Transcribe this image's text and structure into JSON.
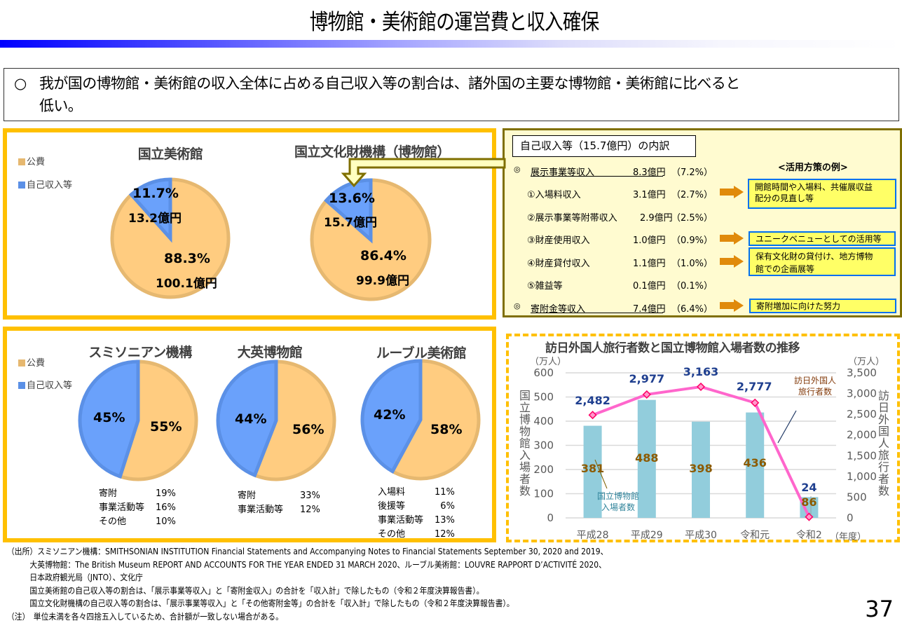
{
  "header": {
    "title": "博物館・美術館の運営費と収入確保"
  },
  "summary": {
    "bullet": "○",
    "line1": "我が国の博物館・美術館の収入全体に占める自己収入等の割合は、諸外国の主要な博物館・美術館に比べると",
    "line2": "低い。"
  },
  "legend": {
    "public": "公費",
    "self": "自己収入等"
  },
  "colors": {
    "public_fill": "#ffcc80",
    "public_stroke": "#e6b870",
    "self_fill": "#6aa1fb",
    "self_stroke": "#5b90e6",
    "yellow_border": "#ffc000",
    "bar": "#92cddc",
    "line": "#ff66cc",
    "marker": "#ff0066",
    "blue_label": "#1f3f8f",
    "brown_label": "#8c5a00"
  },
  "domestic": [
    {
      "name": "国立美術館",
      "self_pct": 11.7,
      "public_pct": 88.3,
      "self_pct_label": "11.7%",
      "self_amount_label": "13.2億円",
      "public_pct_label": "88.3%",
      "public_amount_label": "100.1億円"
    },
    {
      "name": "国立文化財機構（博物館）",
      "self_pct": 13.6,
      "public_pct": 86.4,
      "self_pct_label": "13.6%",
      "self_amount_label": "15.7億円",
      "public_pct_label": "86.4%",
      "public_amount_label": "99.9億円"
    }
  ],
  "breakdown": {
    "header": "自己収入等（15.7億円）の内訳",
    "tips_title": "<活用方策の例>",
    "rows": [
      {
        "mark": "◎",
        "label": "展示事業等収入",
        "amount": "8.3億円",
        "pct": "（7.2%）",
        "underline": true
      },
      {
        "mark": "",
        "label": "①入場料収入",
        "amount": "3.1億円",
        "pct": "（2.7%）"
      },
      {
        "mark": "",
        "label": "②展示事業等附帯収入",
        "amount": "2.9億円",
        "pct": "（2.5%）"
      },
      {
        "mark": "",
        "label": "③財産使用収入",
        "amount": "1.0億円",
        "pct": "（0.9%）"
      },
      {
        "mark": "",
        "label": "④財産貸付収入",
        "amount": "1.1億円",
        "pct": "（1.0%）"
      },
      {
        "mark": "",
        "label": "⑤雑益等",
        "amount": "0.1億円",
        "pct": "（0.1%）"
      },
      {
        "mark": "◎",
        "label": "寄附金等収入",
        "amount": "7.4億円",
        "pct": "（6.4%）",
        "underline": true
      }
    ],
    "tips": [
      {
        "line1": "開館時間や入場料、共催展収益",
        "line2": "配分の見直し等"
      },
      {
        "line1": "ユニークベニューとしての活用等",
        "line2": ""
      },
      {
        "line1": "保有文化財の貸付け、地方博物",
        "line2": "館での企画展等"
      },
      {
        "line1": "寄附増加に向けた努力",
        "line2": ""
      }
    ]
  },
  "foreign": [
    {
      "name": "スミソニアン機構",
      "self_pct": 45,
      "public_pct": 55,
      "self_pct_label": "45%",
      "public_pct_label": "55%",
      "details": [
        {
          "label": "寄附",
          "value": "19%"
        },
        {
          "label": "事業活動等",
          "value": "16%"
        },
        {
          "label": "その他",
          "value": "10%"
        }
      ]
    },
    {
      "name": "大英博物館",
      "self_pct": 44,
      "public_pct": 56,
      "self_pct_label": "44%",
      "public_pct_label": "56%",
      "details": [
        {
          "label": "寄附",
          "value": "33%"
        },
        {
          "label": "事業活動等",
          "value": "12%"
        }
      ]
    },
    {
      "name": "ルーブル美術館",
      "self_pct": 42,
      "public_pct": 58,
      "self_pct_label": "42%",
      "public_pct_label": "58%",
      "details": [
        {
          "label": "入場料",
          "value": "11%"
        },
        {
          "label": "後援等",
          "value": "6%"
        },
        {
          "label": "事業活動等",
          "value": "13%"
        },
        {
          "label": "その他",
          "value": "12%"
        }
      ]
    }
  ],
  "chart_data": {
    "type": "bar+line",
    "title": "訪日外国人旅行者数と国立博物館入場者数の推移",
    "categories": [
      "平成28",
      "平成29",
      "平成30",
      "令和元",
      "令和2"
    ],
    "x_unit": "（年度）",
    "left_axis": {
      "label": "国立博物館入場者数",
      "unit": "（万人）",
      "ylim": [
        0,
        600
      ],
      "ticks": [
        "0",
        "100",
        "200",
        "300",
        "400",
        "500",
        "600"
      ]
    },
    "right_axis": {
      "label": "訪日外国人旅行者数",
      "unit": "（万人）",
      "ylim": [
        0,
        3500
      ],
      "ticks": [
        "0",
        "500",
        "1,000",
        "1,500",
        "2,000",
        "2,500",
        "3,000",
        "3,500"
      ]
    },
    "series": [
      {
        "name": "国立博物館入場者数",
        "type": "bar",
        "axis": "left",
        "values": [
          381,
          488,
          398,
          436,
          86
        ],
        "labels": [
          "381",
          "488",
          "398",
          "436",
          "86"
        ]
      },
      {
        "name": "訪日外国人旅行者数",
        "type": "line",
        "axis": "right",
        "values": [
          2482,
          2977,
          3163,
          2777,
          24
        ],
        "labels": [
          "2,482",
          "2,977",
          "3,163",
          "2,777",
          "24"
        ]
      }
    ],
    "annotations": {
      "bar_callout_line1": "国立博物館",
      "bar_callout_line2": "入場者数",
      "line_callout_line1": "訪日外国人",
      "line_callout_line2": "旅行者数"
    },
    "grid": true
  },
  "footnotes": {
    "lines": [
      "（出所）スミソニアン機構：SMITHSONIAN INSTITUTION Financial Statements and Accompanying Notes to Financial Statements September 30, 2020 and 2019、",
      "大英博物館：The British Museum REPORT AND ACCOUNTS FOR THE YEAR ENDED 31 MARCH 2020、ルーブル美術館：LOUVRE RAPPORT D’ACTIVITÉ 2020、",
      "日本政府観光局（JNTO）、文化庁",
      "国立美術館の自己収入等の割合は、「展示事業等収入」と「寄附金収入」の合計を「収入計」で除したもの（令和２年度決算報告書）。",
      "国立文化財機構の自己収入等の割合は、「展示事業等収入」と「その他寄附金等」の合計を「収入計」で除したもの（令和２年度決算報告書）。",
      "（注）　単位未満を各々四捨五入しているため、合計額が一致しない場合がある。"
    ]
  },
  "page_number": "37"
}
